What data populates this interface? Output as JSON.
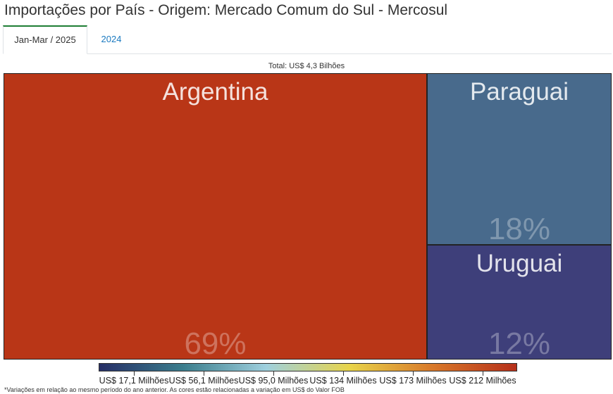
{
  "page": {
    "title": "Importações por País - Origem: Mercado Comum do Sul - Mercosul",
    "tabs": [
      {
        "label": "Jan-Mar / 2025",
        "active": true
      },
      {
        "label": "2024",
        "active": false
      }
    ],
    "footnote": "*Variações em relação ao mesmo período do ano anterior. As cores estão relacionadas a variação em US$ do Valor FOB"
  },
  "chart_data": {
    "type": "treemap",
    "total_label": "Total: US$ 4,3 Bilhões",
    "items": [
      {
        "name": "Argentina",
        "share": 69,
        "share_label": "69%",
        "color": "#b93617"
      },
      {
        "name": "Paraguai",
        "share": 18,
        "share_label": "18%",
        "color": "#486a8c"
      },
      {
        "name": "Uruguai",
        "share": 12,
        "share_label": "12%",
        "color": "#3e3f7a"
      }
    ],
    "color_scale": {
      "stops": [
        "#262e66",
        "#3b7d8c",
        "#9fd0de",
        "#e8d44a",
        "#d8782a",
        "#b6301b"
      ],
      "tick_labels": [
        "US$ 17,1 Milhões",
        "US$ 56,1 Milhões",
        "US$ 95,0 Milhões",
        "US$ 134 Milhões",
        "US$ 173 Milhões",
        "US$ 212 Milhões"
      ]
    }
  }
}
